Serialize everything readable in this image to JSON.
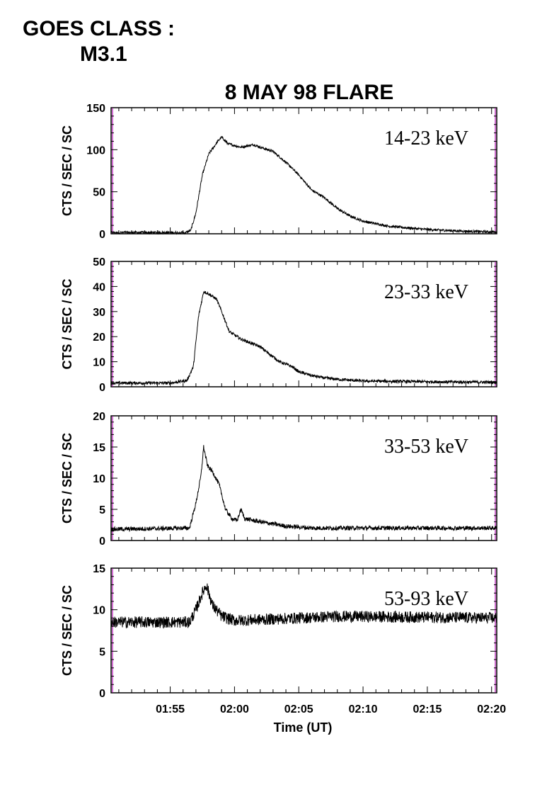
{
  "header": {
    "goes_class_label": "GOES CLASS :",
    "goes_class_value": "M3.1"
  },
  "colors": {
    "trace": "#000000",
    "frame": "#000000",
    "edge_marker": "#c040c0"
  },
  "chart_data": {
    "type": "line",
    "title": "8 MAY 98 FLARE",
    "xlabel": "Time (UT)",
    "x_unit": "minutes after 01:50 UT",
    "xlim": [
      0.4,
      30.4
    ],
    "x_tick_values": [
      5,
      10,
      15,
      20,
      25,
      30
    ],
    "x_tick_labels": [
      "01:55",
      "02:00",
      "02:05",
      "02:10",
      "02:15",
      "02:20"
    ],
    "panels": [
      {
        "band": "14-23 keV",
        "ylabel": "CTS / SEC / SC",
        "ylim": [
          0,
          150
        ],
        "y_ticks": [
          0,
          50,
          100,
          150
        ],
        "noise": 1.5,
        "profile": [
          [
            0.4,
            -4
          ],
          [
            3,
            -3.5
          ],
          [
            5,
            -3
          ],
          [
            6,
            0
          ],
          [
            6.6,
            4
          ],
          [
            7,
            25
          ],
          [
            7.5,
            70
          ],
          [
            8,
            95
          ],
          [
            8.7,
            110
          ],
          [
            9,
            115
          ],
          [
            9.5,
            107
          ],
          [
            10.5,
            103
          ],
          [
            11.5,
            106
          ],
          [
            12,
            103
          ],
          [
            13,
            98
          ],
          [
            14,
            85
          ],
          [
            15,
            70
          ],
          [
            16,
            52
          ],
          [
            17,
            43
          ],
          [
            18,
            30
          ],
          [
            19,
            21
          ],
          [
            20,
            15
          ],
          [
            22,
            9
          ],
          [
            25,
            5
          ],
          [
            28,
            3
          ],
          [
            30.4,
            2
          ]
        ]
      },
      {
        "band": "23-33 keV",
        "ylabel": "CTS / SEC / SC",
        "ylim": [
          0,
          50
        ],
        "y_ticks": [
          0,
          10,
          20,
          30,
          40,
          50
        ],
        "noise": 0.6,
        "profile": [
          [
            0.4,
            1.5
          ],
          [
            5,
            1.5
          ],
          [
            6.3,
            2.5
          ],
          [
            6.8,
            8
          ],
          [
            7.2,
            28
          ],
          [
            7.6,
            38
          ],
          [
            8,
            37
          ],
          [
            8.6,
            35
          ],
          [
            9,
            30
          ],
          [
            9.6,
            22
          ],
          [
            10.5,
            19
          ],
          [
            11.5,
            17
          ],
          [
            12,
            16
          ],
          [
            12.6,
            13.5
          ],
          [
            13,
            12
          ],
          [
            13.5,
            10
          ],
          [
            14.5,
            8
          ],
          [
            15,
            6
          ],
          [
            16,
            4.5
          ],
          [
            17,
            3.5
          ],
          [
            18,
            3
          ],
          [
            20,
            2.3
          ],
          [
            25,
            2
          ],
          [
            30.4,
            1.8
          ]
        ]
      },
      {
        "band": "33-53 keV",
        "ylabel": "CTS / SEC / SC",
        "ylim": [
          0,
          20
        ],
        "y_ticks": [
          0,
          5,
          10,
          15,
          20
        ],
        "noise": 0.35,
        "profile": [
          [
            0.4,
            1.8
          ],
          [
            6.5,
            2
          ],
          [
            7,
            6
          ],
          [
            7.4,
            10.5
          ],
          [
            7.6,
            15
          ],
          [
            7.9,
            12
          ],
          [
            8.3,
            11
          ],
          [
            8.8,
            9
          ],
          [
            9.3,
            5
          ],
          [
            9.8,
            3.5
          ],
          [
            10.2,
            3.2
          ],
          [
            10.5,
            5
          ],
          [
            10.8,
            3.5
          ],
          [
            12,
            3
          ],
          [
            14,
            2.3
          ],
          [
            16,
            2
          ],
          [
            30.4,
            2
          ]
        ]
      },
      {
        "band": "53-93 keV",
        "ylabel": "CTS / SEC / SC",
        "ylim": [
          0,
          15
        ],
        "y_ticks": [
          0,
          5,
          10,
          15
        ],
        "noise": 0.7,
        "profile": [
          [
            0.4,
            8.5
          ],
          [
            6.5,
            8.5
          ],
          [
            7,
            10
          ],
          [
            7.5,
            12
          ],
          [
            7.8,
            13
          ],
          [
            8.3,
            10.5
          ],
          [
            9,
            9.2
          ],
          [
            10,
            8.7
          ],
          [
            12,
            8.8
          ],
          [
            18,
            9.2
          ],
          [
            30.4,
            9
          ]
        ]
      }
    ]
  }
}
